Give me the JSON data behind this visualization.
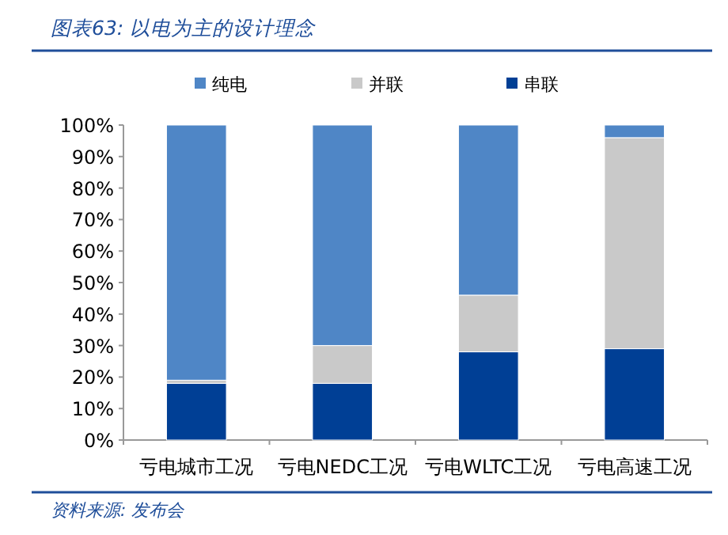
{
  "chart_data": {
    "type": "bar",
    "stacked": true,
    "title": "图表63: 以电为主的设计理念",
    "categories": [
      "亏电城市工况",
      "亏电NEDC工况",
      "亏电WLTC工况",
      "亏电高速工况"
    ],
    "series": [
      {
        "name": "串联",
        "color": "#003f95",
        "values": [
          18,
          18,
          28,
          29
        ]
      },
      {
        "name": "并联",
        "color": "#c9c9c9",
        "values": [
          1,
          12,
          18,
          67
        ]
      },
      {
        "name": "纯电",
        "color": "#4f86c6",
        "values": [
          81,
          70,
          54,
          4
        ]
      }
    ],
    "ylim": [
      0,
      100
    ],
    "yticks": [
      {
        "value": 0,
        "label": "0%"
      },
      {
        "value": 10,
        "label": "10%"
      },
      {
        "value": 20,
        "label": "20%"
      },
      {
        "value": 30,
        "label": "30%"
      },
      {
        "value": 40,
        "label": "40%"
      },
      {
        "value": 50,
        "label": "50%"
      },
      {
        "value": 60,
        "label": "60%"
      },
      {
        "value": 70,
        "label": "70%"
      },
      {
        "value": 80,
        "label": "80%"
      },
      {
        "value": 90,
        "label": "90%"
      },
      {
        "value": 100,
        "label": "100%"
      }
    ],
    "legend": "top",
    "grid": false,
    "annotations": [
      "资料来源: 发布会"
    ]
  }
}
